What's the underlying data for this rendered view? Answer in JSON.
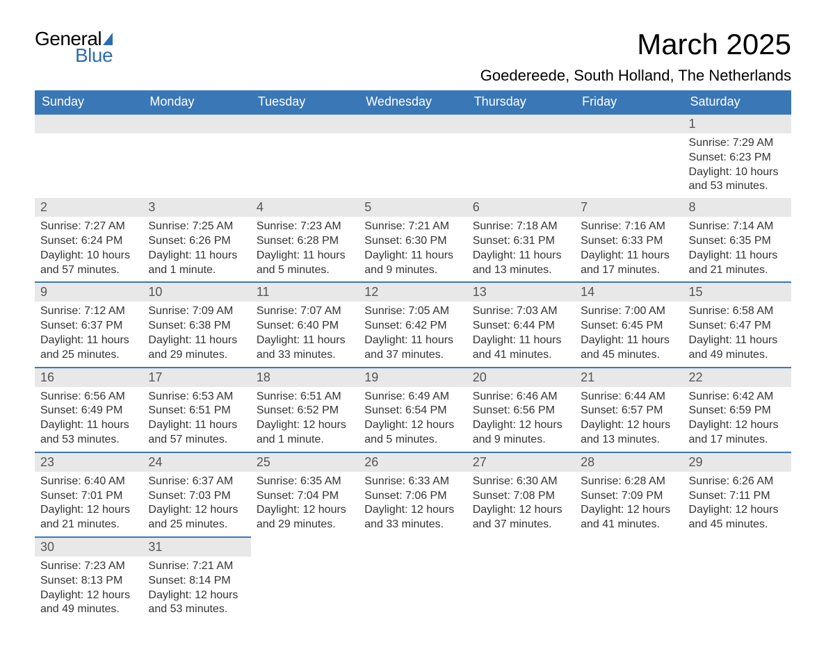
{
  "logo": {
    "text_general": "General",
    "text_blue": "Blue",
    "triangle_color": "#2d6db3"
  },
  "header": {
    "month_title": "March 2025",
    "location": "Goedereede, South Holland, The Netherlands"
  },
  "colors": {
    "header_bg": "#3a77b7",
    "header_text": "#ffffff",
    "daynum_bg": "#e8e8e8",
    "daynum_text": "#555555",
    "border_color": "#3a77b7",
    "body_text": "#333333"
  },
  "weekdays": [
    "Sunday",
    "Monday",
    "Tuesday",
    "Wednesday",
    "Thursday",
    "Friday",
    "Saturday"
  ],
  "weeks": [
    [
      {
        "empty": true
      },
      {
        "empty": true
      },
      {
        "empty": true
      },
      {
        "empty": true
      },
      {
        "empty": true
      },
      {
        "empty": true
      },
      {
        "day": "1",
        "sunrise": "Sunrise: 7:29 AM",
        "sunset": "Sunset: 6:23 PM",
        "daylight1": "Daylight: 10 hours",
        "daylight2": "and 53 minutes."
      }
    ],
    [
      {
        "day": "2",
        "sunrise": "Sunrise: 7:27 AM",
        "sunset": "Sunset: 6:24 PM",
        "daylight1": "Daylight: 10 hours",
        "daylight2": "and 57 minutes."
      },
      {
        "day": "3",
        "sunrise": "Sunrise: 7:25 AM",
        "sunset": "Sunset: 6:26 PM",
        "daylight1": "Daylight: 11 hours",
        "daylight2": "and 1 minute."
      },
      {
        "day": "4",
        "sunrise": "Sunrise: 7:23 AM",
        "sunset": "Sunset: 6:28 PM",
        "daylight1": "Daylight: 11 hours",
        "daylight2": "and 5 minutes."
      },
      {
        "day": "5",
        "sunrise": "Sunrise: 7:21 AM",
        "sunset": "Sunset: 6:30 PM",
        "daylight1": "Daylight: 11 hours",
        "daylight2": "and 9 minutes."
      },
      {
        "day": "6",
        "sunrise": "Sunrise: 7:18 AM",
        "sunset": "Sunset: 6:31 PM",
        "daylight1": "Daylight: 11 hours",
        "daylight2": "and 13 minutes."
      },
      {
        "day": "7",
        "sunrise": "Sunrise: 7:16 AM",
        "sunset": "Sunset: 6:33 PM",
        "daylight1": "Daylight: 11 hours",
        "daylight2": "and 17 minutes."
      },
      {
        "day": "8",
        "sunrise": "Sunrise: 7:14 AM",
        "sunset": "Sunset: 6:35 PM",
        "daylight1": "Daylight: 11 hours",
        "daylight2": "and 21 minutes."
      }
    ],
    [
      {
        "day": "9",
        "sunrise": "Sunrise: 7:12 AM",
        "sunset": "Sunset: 6:37 PM",
        "daylight1": "Daylight: 11 hours",
        "daylight2": "and 25 minutes."
      },
      {
        "day": "10",
        "sunrise": "Sunrise: 7:09 AM",
        "sunset": "Sunset: 6:38 PM",
        "daylight1": "Daylight: 11 hours",
        "daylight2": "and 29 minutes."
      },
      {
        "day": "11",
        "sunrise": "Sunrise: 7:07 AM",
        "sunset": "Sunset: 6:40 PM",
        "daylight1": "Daylight: 11 hours",
        "daylight2": "and 33 minutes."
      },
      {
        "day": "12",
        "sunrise": "Sunrise: 7:05 AM",
        "sunset": "Sunset: 6:42 PM",
        "daylight1": "Daylight: 11 hours",
        "daylight2": "and 37 minutes."
      },
      {
        "day": "13",
        "sunrise": "Sunrise: 7:03 AM",
        "sunset": "Sunset: 6:44 PM",
        "daylight1": "Daylight: 11 hours",
        "daylight2": "and 41 minutes."
      },
      {
        "day": "14",
        "sunrise": "Sunrise: 7:00 AM",
        "sunset": "Sunset: 6:45 PM",
        "daylight1": "Daylight: 11 hours",
        "daylight2": "and 45 minutes."
      },
      {
        "day": "15",
        "sunrise": "Sunrise: 6:58 AM",
        "sunset": "Sunset: 6:47 PM",
        "daylight1": "Daylight: 11 hours",
        "daylight2": "and 49 minutes."
      }
    ],
    [
      {
        "day": "16",
        "sunrise": "Sunrise: 6:56 AM",
        "sunset": "Sunset: 6:49 PM",
        "daylight1": "Daylight: 11 hours",
        "daylight2": "and 53 minutes."
      },
      {
        "day": "17",
        "sunrise": "Sunrise: 6:53 AM",
        "sunset": "Sunset: 6:51 PM",
        "daylight1": "Daylight: 11 hours",
        "daylight2": "and 57 minutes."
      },
      {
        "day": "18",
        "sunrise": "Sunrise: 6:51 AM",
        "sunset": "Sunset: 6:52 PM",
        "daylight1": "Daylight: 12 hours",
        "daylight2": "and 1 minute."
      },
      {
        "day": "19",
        "sunrise": "Sunrise: 6:49 AM",
        "sunset": "Sunset: 6:54 PM",
        "daylight1": "Daylight: 12 hours",
        "daylight2": "and 5 minutes."
      },
      {
        "day": "20",
        "sunrise": "Sunrise: 6:46 AM",
        "sunset": "Sunset: 6:56 PM",
        "daylight1": "Daylight: 12 hours",
        "daylight2": "and 9 minutes."
      },
      {
        "day": "21",
        "sunrise": "Sunrise: 6:44 AM",
        "sunset": "Sunset: 6:57 PM",
        "daylight1": "Daylight: 12 hours",
        "daylight2": "and 13 minutes."
      },
      {
        "day": "22",
        "sunrise": "Sunrise: 6:42 AM",
        "sunset": "Sunset: 6:59 PM",
        "daylight1": "Daylight: 12 hours",
        "daylight2": "and 17 minutes."
      }
    ],
    [
      {
        "day": "23",
        "sunrise": "Sunrise: 6:40 AM",
        "sunset": "Sunset: 7:01 PM",
        "daylight1": "Daylight: 12 hours",
        "daylight2": "and 21 minutes."
      },
      {
        "day": "24",
        "sunrise": "Sunrise: 6:37 AM",
        "sunset": "Sunset: 7:03 PM",
        "daylight1": "Daylight: 12 hours",
        "daylight2": "and 25 minutes."
      },
      {
        "day": "25",
        "sunrise": "Sunrise: 6:35 AM",
        "sunset": "Sunset: 7:04 PM",
        "daylight1": "Daylight: 12 hours",
        "daylight2": "and 29 minutes."
      },
      {
        "day": "26",
        "sunrise": "Sunrise: 6:33 AM",
        "sunset": "Sunset: 7:06 PM",
        "daylight1": "Daylight: 12 hours",
        "daylight2": "and 33 minutes."
      },
      {
        "day": "27",
        "sunrise": "Sunrise: 6:30 AM",
        "sunset": "Sunset: 7:08 PM",
        "daylight1": "Daylight: 12 hours",
        "daylight2": "and 37 minutes."
      },
      {
        "day": "28",
        "sunrise": "Sunrise: 6:28 AM",
        "sunset": "Sunset: 7:09 PM",
        "daylight1": "Daylight: 12 hours",
        "daylight2": "and 41 minutes."
      },
      {
        "day": "29",
        "sunrise": "Sunrise: 6:26 AM",
        "sunset": "Sunset: 7:11 PM",
        "daylight1": "Daylight: 12 hours",
        "daylight2": "and 45 minutes."
      }
    ],
    [
      {
        "day": "30",
        "sunrise": "Sunrise: 7:23 AM",
        "sunset": "Sunset: 8:13 PM",
        "daylight1": "Daylight: 12 hours",
        "daylight2": "and 49 minutes."
      },
      {
        "day": "31",
        "sunrise": "Sunrise: 7:21 AM",
        "sunset": "Sunset: 8:14 PM",
        "daylight1": "Daylight: 12 hours",
        "daylight2": "and 53 minutes."
      },
      {
        "empty": true,
        "trailing": true
      },
      {
        "empty": true,
        "trailing": true
      },
      {
        "empty": true,
        "trailing": true
      },
      {
        "empty": true,
        "trailing": true
      },
      {
        "empty": true,
        "trailing": true
      }
    ]
  ]
}
